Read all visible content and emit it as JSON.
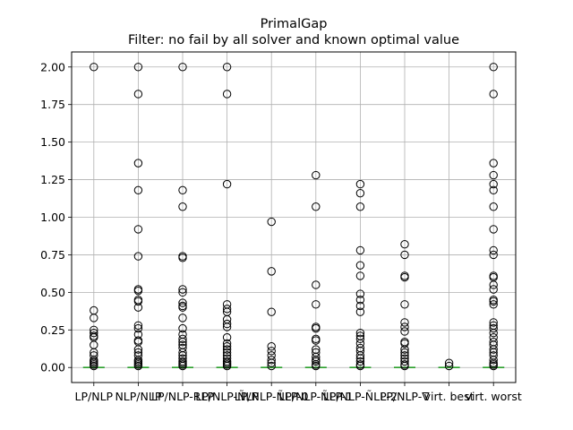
{
  "chart_data": {
    "type": "box",
    "title": "PrimalGap",
    "subtitle": "Filter: no fail by all solver and known optimal value",
    "xlabel": "",
    "ylabel": "",
    "ylim": [
      -0.1,
      2.1
    ],
    "yticks": [
      0.0,
      0.25,
      0.5,
      0.75,
      1.0,
      1.25,
      1.5,
      1.75,
      2.0
    ],
    "ytick_labels": [
      "0.00",
      "0.25",
      "0.50",
      "0.75",
      "1.00",
      "1.25",
      "1.50",
      "1.75",
      "2.00"
    ],
    "grid": true,
    "median_color": "#2ca02c",
    "categories": [
      "LP/NLP",
      "NLP/NLP",
      "LP/NLP-RLP",
      "LP/NLP-ÑLP",
      "LP/NLP-ÑLP-0",
      "LP/NLP-ÑLP-1",
      "LP/NLP-ÑLP-2",
      "LP/NLP-∇",
      "virt. best",
      "virt. worst"
    ],
    "series": [
      {
        "box": [
          0.0,
          0.0,
          0.0,
          0.0,
          0.0
        ],
        "outliers": [
          2.0,
          0.38,
          0.33,
          0.25,
          0.23,
          0.21,
          0.2,
          0.15,
          0.1,
          0.08,
          0.05,
          0.04,
          0.03,
          0.02,
          0.01
        ]
      },
      {
        "box": [
          0.0,
          0.0,
          0.0,
          0.0,
          0.0
        ],
        "outliers": [
          2.0,
          1.82,
          1.36,
          1.18,
          0.92,
          0.74,
          0.52,
          0.51,
          0.45,
          0.44,
          0.4,
          0.28,
          0.26,
          0.22,
          0.18,
          0.17,
          0.12,
          0.1,
          0.08,
          0.05,
          0.04,
          0.03,
          0.02,
          0.01
        ]
      },
      {
        "box": [
          0.0,
          0.0,
          0.0,
          0.0,
          0.0
        ],
        "outliers": [
          2.0,
          1.18,
          1.07,
          0.74,
          0.73,
          0.52,
          0.5,
          0.43,
          0.41,
          0.4,
          0.33,
          0.26,
          0.22,
          0.19,
          0.17,
          0.15,
          0.13,
          0.1,
          0.08,
          0.06,
          0.04,
          0.03,
          0.02,
          0.01
        ]
      },
      {
        "box": [
          0.0,
          0.0,
          0.0,
          0.0,
          0.0
        ],
        "outliers": [
          2.0,
          1.82,
          1.22,
          0.42,
          0.39,
          0.37,
          0.32,
          0.29,
          0.27,
          0.2,
          0.16,
          0.14,
          0.12,
          0.1,
          0.08,
          0.06,
          0.04,
          0.03,
          0.02,
          0.01
        ]
      },
      {
        "box": [
          0.0,
          0.0,
          0.0,
          0.0,
          0.0
        ],
        "outliers": [
          0.97,
          0.64,
          0.37,
          0.14,
          0.11,
          0.08,
          0.05,
          0.03,
          0.01
        ]
      },
      {
        "box": [
          0.0,
          0.0,
          0.0,
          0.0,
          0.0
        ],
        "outliers": [
          1.28,
          1.07,
          0.55,
          0.42,
          0.27,
          0.26,
          0.19,
          0.18,
          0.12,
          0.1,
          0.07,
          0.05,
          0.04,
          0.02,
          0.01
        ]
      },
      {
        "box": [
          0.0,
          0.0,
          0.0,
          0.0,
          0.0
        ],
        "outliers": [
          1.22,
          1.16,
          1.07,
          0.78,
          0.68,
          0.61,
          0.49,
          0.45,
          0.41,
          0.37,
          0.23,
          0.21,
          0.19,
          0.16,
          0.13,
          0.11,
          0.08,
          0.06,
          0.04,
          0.02,
          0.01
        ]
      },
      {
        "box": [
          0.0,
          0.0,
          0.0,
          0.0,
          0.0
        ],
        "outliers": [
          0.82,
          0.75,
          0.61,
          0.6,
          0.42,
          0.3,
          0.27,
          0.24,
          0.17,
          0.16,
          0.12,
          0.1,
          0.08,
          0.06,
          0.04,
          0.02,
          0.01
        ]
      },
      {
        "box": [
          0.0,
          0.0,
          0.0,
          0.0,
          0.0
        ],
        "outliers": [
          0.03,
          0.01
        ]
      },
      {
        "box": [
          0.0,
          0.0,
          0.0,
          0.0,
          0.0
        ],
        "outliers": [
          2.0,
          1.82,
          1.36,
          1.28,
          1.22,
          1.18,
          1.07,
          0.92,
          0.78,
          0.75,
          0.61,
          0.6,
          0.55,
          0.52,
          0.45,
          0.44,
          0.42,
          0.3,
          0.28,
          0.26,
          0.23,
          0.2,
          0.17,
          0.15,
          0.12,
          0.1,
          0.08,
          0.05,
          0.03,
          0.02,
          0.01
        ]
      }
    ]
  }
}
